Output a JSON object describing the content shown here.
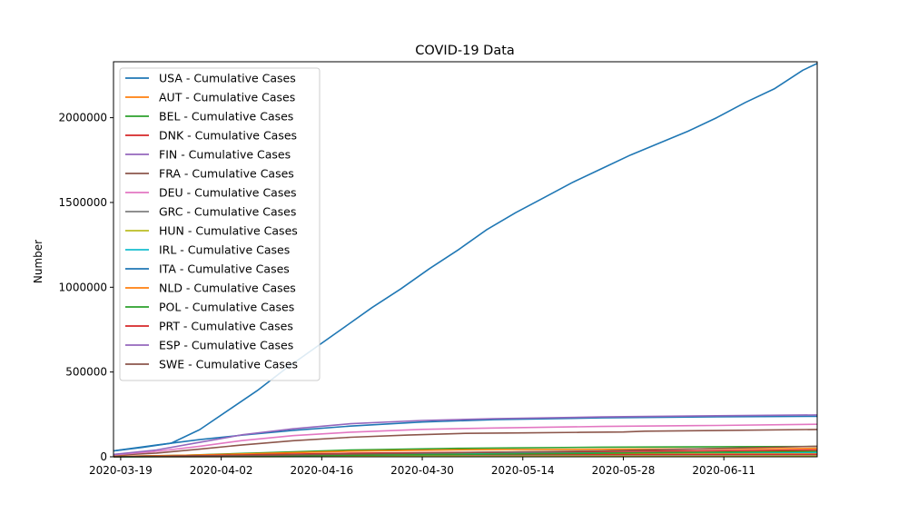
{
  "chart_data": {
    "type": "line",
    "title": "COVID-19 Data",
    "xlabel": "",
    "ylabel": "Number",
    "x_range": [
      "2020-03-18",
      "2020-06-24"
    ],
    "ylim": [
      0,
      2330000
    ],
    "x_ticks": [
      "2020-03-19",
      "2020-04-02",
      "2020-04-16",
      "2020-04-30",
      "2020-05-14",
      "2020-05-28",
      "2020-06-11"
    ],
    "y_ticks": [
      0,
      500000,
      1000000,
      1500000,
      2000000
    ],
    "grid": false,
    "legend_position": "top-left",
    "series": [
      {
        "name": "USA - Cumulative Cases",
        "color": "#1f77b4",
        "x": [
          "2020-03-18",
          "2020-03-22",
          "2020-03-26",
          "2020-03-30",
          "2020-04-03",
          "2020-04-07",
          "2020-04-11",
          "2020-04-15",
          "2020-04-19",
          "2020-04-23",
          "2020-04-27",
          "2020-05-01",
          "2020-05-05",
          "2020-05-09",
          "2020-05-13",
          "2020-05-17",
          "2020-05-21",
          "2020-05-25",
          "2020-05-29",
          "2020-06-02",
          "2020-06-06",
          "2020-06-10",
          "2020-06-14",
          "2020-06-18",
          "2020-06-22",
          "2020-06-24"
        ],
        "values": [
          35000,
          55000,
          80000,
          160000,
          275000,
          390000,
          520000,
          640000,
          760000,
          880000,
          990000,
          1110000,
          1220000,
          1340000,
          1440000,
          1530000,
          1620000,
          1700000,
          1780000,
          1850000,
          1920000,
          2000000,
          2090000,
          2170000,
          2280000,
          2320000
        ]
      },
      {
        "name": "AUT - Cumulative Cases",
        "color": "#ff7f0e",
        "x": [
          "2020-03-18",
          "2020-03-28",
          "2020-04-08",
          "2020-04-20",
          "2020-05-05",
          "2020-06-24"
        ],
        "values": [
          1700,
          8000,
          12500,
          14800,
          15600,
          17500
        ]
      },
      {
        "name": "BEL - Cumulative Cases",
        "color": "#2ca02c",
        "x": [
          "2020-03-18",
          "2020-03-28",
          "2020-04-08",
          "2020-04-20",
          "2020-05-05",
          "2020-05-25",
          "2020-06-24"
        ],
        "values": [
          1500,
          9000,
          24000,
          40000,
          50000,
          57000,
          61000
        ]
      },
      {
        "name": "DNK - Cumulative Cases",
        "color": "#d62728",
        "x": [
          "2020-03-18",
          "2020-03-28",
          "2020-04-08",
          "2020-04-20",
          "2020-05-05",
          "2020-06-24"
        ],
        "values": [
          1000,
          2500,
          5400,
          7500,
          10000,
          12600
        ]
      },
      {
        "name": "FIN - Cumulative Cases",
        "color": "#9467bd",
        "x": [
          "2020-03-18",
          "2020-03-28",
          "2020-04-08",
          "2020-04-20",
          "2020-05-05",
          "2020-06-24"
        ],
        "values": [
          300,
          1000,
          2500,
          4000,
          5400,
          7200
        ]
      },
      {
        "name": "FRA - Cumulative Cases",
        "color": "#8c564b",
        "x": [
          "2020-03-18",
          "2020-03-24",
          "2020-03-30",
          "2020-04-05",
          "2020-04-12",
          "2020-04-20",
          "2020-04-28",
          "2020-05-06",
          "2020-05-14",
          "2020-05-22",
          "2020-05-28",
          "2020-05-31",
          "2020-06-10",
          "2020-06-24"
        ],
        "values": [
          9000,
          22000,
          45000,
          70000,
          95000,
          115000,
          128000,
          138000,
          141000,
          144000,
          146000,
          151000,
          155000,
          161000
        ]
      },
      {
        "name": "DEU - Cumulative Cases",
        "color": "#e377c2",
        "x": [
          "2020-03-18",
          "2020-03-24",
          "2020-03-30",
          "2020-04-05",
          "2020-04-12",
          "2020-04-20",
          "2020-04-30",
          "2020-05-10",
          "2020-05-25",
          "2020-06-10",
          "2020-06-24"
        ],
        "values": [
          12000,
          32000,
          62000,
          96000,
          125000,
          145000,
          162000,
          170000,
          179000,
          185000,
          192000
        ]
      },
      {
        "name": "GRC - Cumulative Cases",
        "color": "#7f7f7f",
        "x": [
          "2020-03-18",
          "2020-04-08",
          "2020-05-05",
          "2020-06-24"
        ],
        "values": [
          400,
          1800,
          2600,
          3300
        ]
      },
      {
        "name": "HUN - Cumulative Cases",
        "color": "#bcbd22",
        "x": [
          "2020-03-18",
          "2020-04-08",
          "2020-05-05",
          "2020-06-24"
        ],
        "values": [
          50,
          900,
          3000,
          4100
        ]
      },
      {
        "name": "IRL - Cumulative Cases",
        "color": "#17becf",
        "x": [
          "2020-03-18",
          "2020-03-28",
          "2020-04-08",
          "2020-04-20",
          "2020-05-05",
          "2020-06-24"
        ],
        "values": [
          300,
          2400,
          6500,
          16000,
          22000,
          25400
        ]
      },
      {
        "name": "ITA - Cumulative Cases",
        "color": "#1f77b4",
        "x": [
          "2020-03-18",
          "2020-03-24",
          "2020-03-30",
          "2020-04-05",
          "2020-04-12",
          "2020-04-20",
          "2020-04-30",
          "2020-05-10",
          "2020-05-25",
          "2020-06-10",
          "2020-06-24"
        ],
        "values": [
          35000,
          69000,
          101000,
          128000,
          156000,
          181000,
          205000,
          219000,
          230000,
          236000,
          239000
        ]
      },
      {
        "name": "NLD - Cumulative Cases",
        "color": "#ff7f0e",
        "x": [
          "2020-03-18",
          "2020-03-28",
          "2020-04-08",
          "2020-04-20",
          "2020-05-05",
          "2020-06-24"
        ],
        "values": [
          2000,
          9000,
          20000,
          33000,
          41000,
          50000
        ]
      },
      {
        "name": "POL - Cumulative Cases",
        "color": "#2ca02c",
        "x": [
          "2020-03-18",
          "2020-04-08",
          "2020-05-05",
          "2020-05-25",
          "2020-06-24"
        ],
        "values": [
          300,
          5000,
          14000,
          21000,
          32000
        ]
      },
      {
        "name": "PRT - Cumulative Cases",
        "color": "#d62728",
        "x": [
          "2020-03-18",
          "2020-03-28",
          "2020-04-08",
          "2020-04-20",
          "2020-05-05",
          "2020-06-24"
        ],
        "values": [
          600,
          5000,
          13000,
          21000,
          25500,
          40000
        ]
      },
      {
        "name": "ESP - Cumulative Cases",
        "color": "#9467bd",
        "x": [
          "2020-03-18",
          "2020-03-24",
          "2020-03-30",
          "2020-04-05",
          "2020-04-12",
          "2020-04-20",
          "2020-04-30",
          "2020-05-10",
          "2020-05-25",
          "2020-06-10",
          "2020-06-24"
        ],
        "values": [
          14000,
          40000,
          85000,
          130000,
          165000,
          195000,
          214000,
          225000,
          235000,
          242000,
          247000
        ]
      },
      {
        "name": "SWE - Cumulative Cases",
        "color": "#8c564b",
        "x": [
          "2020-03-18",
          "2020-04-08",
          "2020-05-05",
          "2020-05-25",
          "2020-06-24"
        ],
        "values": [
          1300,
          9000,
          24000,
          35000,
          62000
        ]
      }
    ]
  }
}
